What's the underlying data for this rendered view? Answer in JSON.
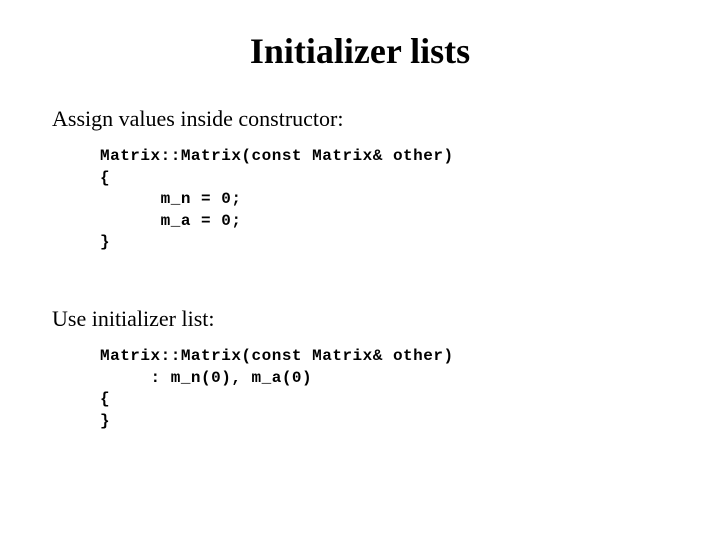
{
  "title": "Initializer lists",
  "section1": {
    "heading": "Assign values inside constructor:",
    "code": "Matrix::Matrix(const Matrix& other)\n{\n      m_n = 0;\n      m_a = 0;\n}"
  },
  "section2": {
    "heading": "Use initializer list:",
    "code": "Matrix::Matrix(const Matrix& other)\n     : m_n(0), m_a(0)\n{\n}"
  },
  "style": {
    "title_fontsize": 36,
    "subtitle_fontsize": 22,
    "code_fontsize": 16,
    "code_font": "Courier New",
    "body_font": "Times New Roman",
    "text_color": "#000000",
    "background_color": "#ffffff"
  }
}
